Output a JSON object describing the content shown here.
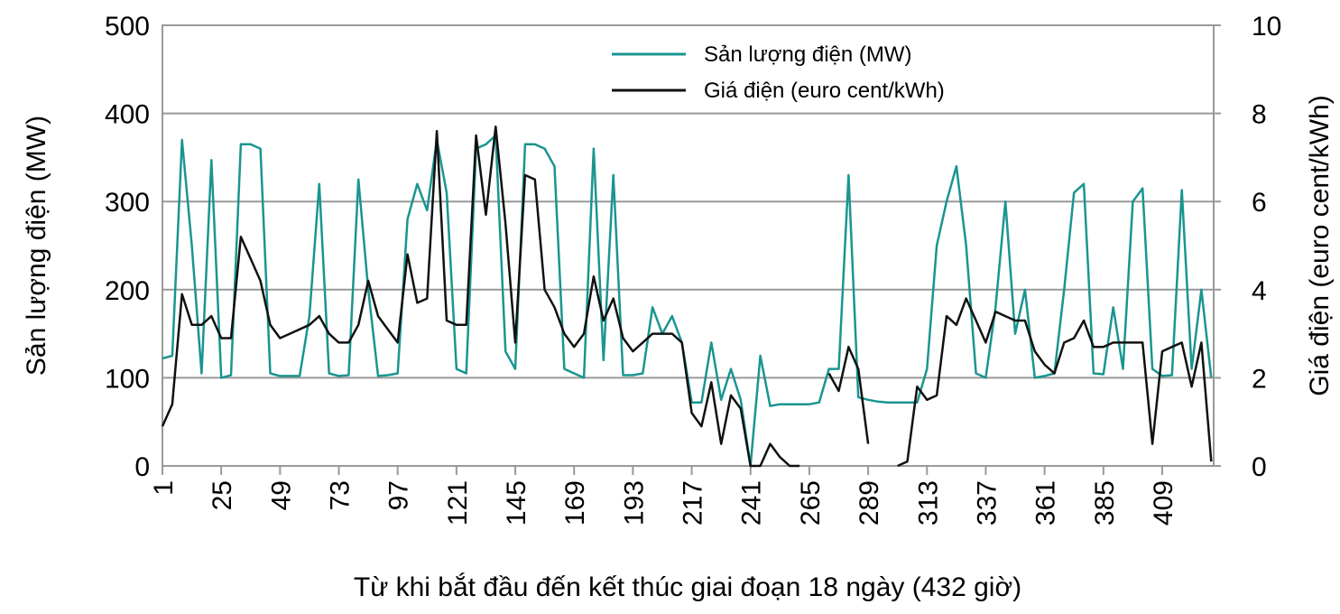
{
  "chart_data": {
    "type": "line",
    "xlabel": "Từ khi bắt đầu đến kết thúc giai đoạn 18 ngày (432 giờ)",
    "ylabel": "Sản lượng điện (MW)",
    "y2label": "Giá điện (euro cent/kWh)",
    "xlim": [
      1,
      430
    ],
    "xticks": [
      1,
      25,
      49,
      73,
      97,
      121,
      145,
      169,
      193,
      217,
      241,
      265,
      289,
      313,
      337,
      361,
      385,
      409
    ],
    "ylim": [
      0,
      500
    ],
    "yticks": [
      0,
      100,
      200,
      300,
      400,
      500
    ],
    "y2lim": [
      0,
      10
    ],
    "y2ticks": [
      0,
      2,
      4,
      6,
      8,
      10
    ],
    "grid": true,
    "legend": "top",
    "x": [
      1,
      5,
      9,
      13,
      17,
      21,
      25,
      29,
      33,
      37,
      41,
      45,
      49,
      53,
      57,
      61,
      65,
      69,
      73,
      77,
      81,
      85,
      89,
      93,
      97,
      101,
      105,
      109,
      113,
      117,
      121,
      125,
      129,
      133,
      137,
      141,
      145,
      149,
      153,
      157,
      161,
      165,
      169,
      173,
      177,
      181,
      185,
      189,
      193,
      197,
      201,
      205,
      209,
      213,
      217,
      221,
      225,
      229,
      233,
      237,
      241,
      245,
      249,
      253,
      257,
      261,
      265,
      269,
      273,
      277,
      281,
      285,
      289,
      293,
      297,
      301,
      305,
      309,
      313,
      317,
      321,
      325,
      329,
      333,
      337,
      341,
      345,
      349,
      353,
      357,
      361,
      365,
      369,
      373,
      377,
      381,
      385,
      389,
      393,
      397,
      401,
      405,
      409,
      413,
      417,
      421,
      425,
      429
    ],
    "series": [
      {
        "name": "Sản lượng điện (MW)",
        "color": "#1a9590",
        "values": [
          122,
          125,
          370,
          250,
          105,
          347,
          100,
          103,
          365,
          365,
          360,
          105,
          102,
          102,
          102,
          170,
          320,
          105,
          102,
          103,
          325,
          200,
          102,
          103,
          105,
          280,
          320,
          290,
          370,
          310,
          110,
          105,
          360,
          365,
          375,
          130,
          110,
          365,
          365,
          360,
          340,
          110,
          105,
          100,
          360,
          120,
          330,
          103,
          103,
          105,
          180,
          150,
          170,
          140,
          72,
          72,
          140,
          75,
          110,
          75,
          0,
          125,
          68,
          70,
          70,
          70,
          70,
          72,
          110,
          110,
          330,
          78,
          75,
          73,
          72,
          72,
          72,
          72,
          110,
          250,
          300,
          340,
          250,
          105,
          100,
          180,
          300,
          150,
          200,
          100,
          102,
          105,
          200,
          310,
          320,
          105,
          104,
          180,
          110,
          300,
          315,
          110,
          102,
          103,
          313,
          110,
          200,
          100
        ]
      },
      {
        "name": "Giá điện (euro cent/kWh)",
        "color": "#111111",
        "axis": "y2",
        "values": [
          0.9,
          1.4,
          3.9,
          3.2,
          3.2,
          3.4,
          2.9,
          2.9,
          5.2,
          4.7,
          4.2,
          3.2,
          2.9,
          3.0,
          3.1,
          3.2,
          3.4,
          3.0,
          2.8,
          2.8,
          3.2,
          4.2,
          3.4,
          3.1,
          2.8,
          4.8,
          3.7,
          3.8,
          7.6,
          3.3,
          3.2,
          3.2,
          7.5,
          5.7,
          7.7,
          5.5,
          2.8,
          6.6,
          6.5,
          4.0,
          3.6,
          3.0,
          2.7,
          3.0,
          4.3,
          3.3,
          3.8,
          2.9,
          2.6,
          2.8,
          3.0,
          3.0,
          3.0,
          2.8,
          1.2,
          0.9,
          1.9,
          0.5,
          1.6,
          1.3,
          0.0,
          0.0,
          0.5,
          0.2,
          0.0,
          0.0,
          null,
          null,
          2.1,
          1.7,
          2.7,
          2.2,
          0.5,
          null,
          null,
          0.0,
          0.1,
          1.8,
          1.5,
          1.6,
          3.4,
          3.2,
          3.8,
          3.3,
          2.8,
          3.5,
          3.4,
          3.3,
          3.3,
          2.6,
          2.3,
          2.1,
          2.8,
          2.9,
          3.3,
          2.7,
          2.7,
          2.8,
          2.8,
          2.8,
          2.8,
          0.5,
          2.6,
          2.7,
          2.8,
          1.8,
          2.8,
          0.1
        ]
      }
    ]
  }
}
